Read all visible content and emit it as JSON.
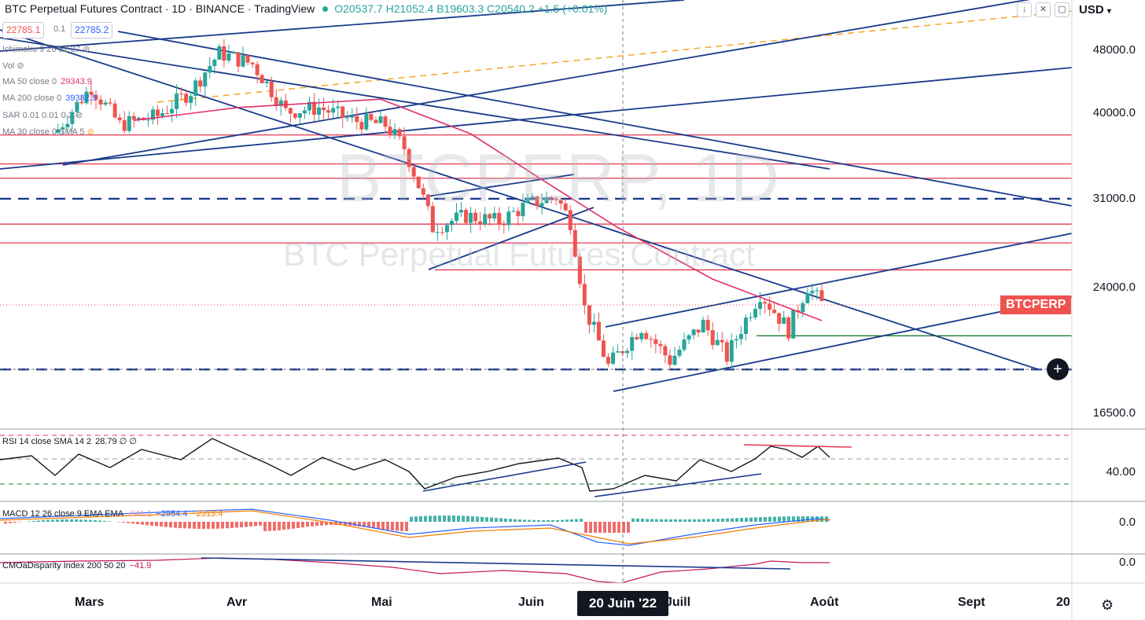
{
  "header": {
    "title": "BTC Perpetual Futures Contract · 1D · BINANCE · TradingView",
    "ohlc": "O20537.7  H21052.4  B19603.3  C20540.2  +1.5 (+0.01%)",
    "bid": "22785.1",
    "spread": "0.1",
    "ask": "22785.2",
    "currency": "USD"
  },
  "watermark": {
    "symbol": "BTCPERP, 1D",
    "description": "BTC Perpetual Futures Contract"
  },
  "indicators": [
    {
      "name": "Ichimoku 9 26 52 27",
      "value": ""
    },
    {
      "name": "Vol",
      "value": ""
    },
    {
      "name": "MA 50 close 0",
      "value": "29343.9"
    },
    {
      "name": "MA 200 close 0",
      "value": "39382.5"
    },
    {
      "name": "SAR 0.01 0.01 0.2",
      "value": ""
    },
    {
      "name": "MA 30 close 0 SMA 5",
      "value": ""
    }
  ],
  "panes": {
    "rsi": {
      "label": "RSI 14 close SMA 14 2",
      "value": "28.79  ∅  ∅",
      "axis_label": "40.00",
      "lines": [
        70,
        50,
        30
      ]
    },
    "macd": {
      "label": "MACD 12 26 close 9 EMA EMA",
      "v1": "-641.1",
      "v2": "−2954.4",
      "v3": "−2313.4",
      "axis_label": "0.0"
    },
    "cmo": {
      "label": "CMOaDisparity Index 200 50 20",
      "value": "−41.9",
      "axis_label": "0.0"
    }
  },
  "y_axis_labels": [
    "48000.0",
    "40000.0",
    "31000.0",
    "24000.0",
    "16500.0"
  ],
  "price_tags": [
    {
      "value": "37370.0",
      "color": "#e53950"
    },
    {
      "value": "34333.9",
      "color": "#e53950"
    },
    {
      "value": "32921.2",
      "color": "#e53950"
    },
    {
      "value": "28784.1",
      "color": "#e53950"
    },
    {
      "value": "27244.0",
      "color": "#e53950"
    },
    {
      "value": "25174.8",
      "color": "#e53950"
    },
    {
      "value": "22785.1",
      "color": "#ef5350",
      "badge": "BTCPERP"
    },
    {
      "value": "20755.3",
      "color": "#1e7d32"
    },
    {
      "value": "18807.0",
      "color": "#131722"
    }
  ],
  "x_axis_labels": [
    "Mars",
    "Avr",
    "Mai",
    "Juin",
    "Juill",
    "Août",
    "Sept",
    "20"
  ],
  "crosshair_date": "20 Juin '22",
  "colors": {
    "up": "#26a69a",
    "down": "#ef5350",
    "ma50": "#e0306a",
    "trend": "#1a3a8c",
    "resistance": "#e53950",
    "support": "#1e7d32",
    "ichimoku": "#f5a623"
  },
  "chart_data": {
    "type": "candlestick",
    "title": "BTC Perpetual Futures Contract · 1D · BINANCE",
    "y_scale": "log",
    "horizontal_levels": [
      37370.0,
      34333.9,
      32921.2,
      31000.0,
      28784.1,
      27244.0,
      25174.8,
      20755.3,
      18807.0
    ],
    "dashed_levels": [
      31000.0,
      18807.0
    ],
    "price_path": [
      [
        "2022-02-22",
        38000
      ],
      [
        "2022-03-01",
        43000
      ],
      [
        "2022-03-07",
        38500
      ],
      [
        "2022-03-15",
        39500
      ],
      [
        "2022-03-22",
        42500
      ],
      [
        "2022-03-28",
        47500
      ],
      [
        "2022-04-04",
        46000
      ],
      [
        "2022-04-11",
        40000
      ],
      [
        "2022-04-18",
        40500
      ],
      [
        "2022-04-25",
        39000
      ],
      [
        "2022-05-02",
        38500
      ],
      [
        "2022-05-06",
        36000
      ],
      [
        "2022-05-12",
        28500
      ],
      [
        "2022-05-19",
        29500
      ],
      [
        "2022-05-26",
        29000
      ],
      [
        "2022-06-01",
        30500
      ],
      [
        "2022-06-07",
        31200
      ],
      [
        "2022-06-10",
        29000
      ],
      [
        "2022-06-13",
        22500
      ],
      [
        "2022-06-18",
        19000
      ],
      [
        "2022-06-25",
        21300
      ],
      [
        "2022-07-01",
        19300
      ],
      [
        "2022-07-08",
        21500
      ],
      [
        "2022-07-13",
        19500
      ],
      [
        "2022-07-20",
        23500
      ],
      [
        "2022-07-26",
        21100
      ],
      [
        "2022-07-30",
        24000
      ],
      [
        "2022-08-02",
        22785
      ]
    ],
    "ma50": [
      [
        "2022-03-10",
        39000
      ],
      [
        "2022-04-01",
        40500
      ],
      [
        "2022-05-01",
        41500
      ],
      [
        "2022-05-20",
        37500
      ],
      [
        "2022-06-05",
        32500
      ],
      [
        "2022-06-20",
        28500
      ],
      [
        "2022-07-10",
        24500
      ],
      [
        "2022-08-02",
        21700
      ]
    ]
  }
}
